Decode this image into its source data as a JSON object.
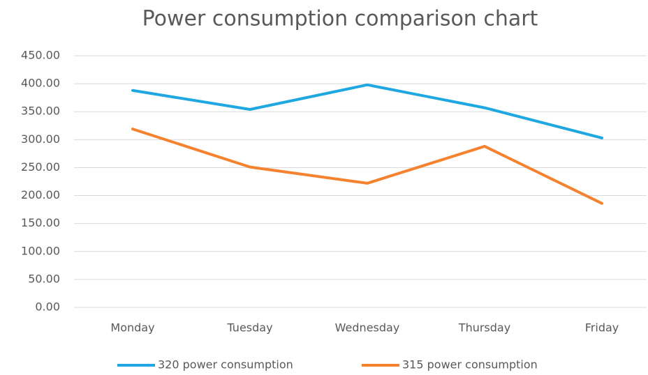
{
  "chart_data": {
    "type": "line",
    "title": "Power consumption comparison chart",
    "categories": [
      "Monday",
      "Tuesday",
      "Wednesday",
      "Thursday",
      "Friday"
    ],
    "series": [
      {
        "name": "320 power consumption",
        "color": "#1ea7e0",
        "values": [
          388,
          354,
          398,
          357,
          303
        ]
      },
      {
        "name": "315 power consumption",
        "color": "#f5822e",
        "values": [
          319,
          251,
          222,
          288,
          186
        ]
      }
    ],
    "ylim": [
      0,
      450
    ],
    "yticks": [
      {
        "value": 0,
        "label": "0.00"
      },
      {
        "value": 50,
        "label": "50.00"
      },
      {
        "value": 100,
        "label": "100.00"
      },
      {
        "value": 150,
        "label": "150.00"
      },
      {
        "value": 200,
        "label": "200.00"
      },
      {
        "value": 250,
        "label": "250.00"
      },
      {
        "value": 300,
        "label": "300.00"
      },
      {
        "value": 350,
        "label": "350.00"
      },
      {
        "value": 400,
        "label": "400.00"
      },
      {
        "value": 450,
        "label": "450.00"
      }
    ],
    "grid": true,
    "legend": "bottom"
  }
}
